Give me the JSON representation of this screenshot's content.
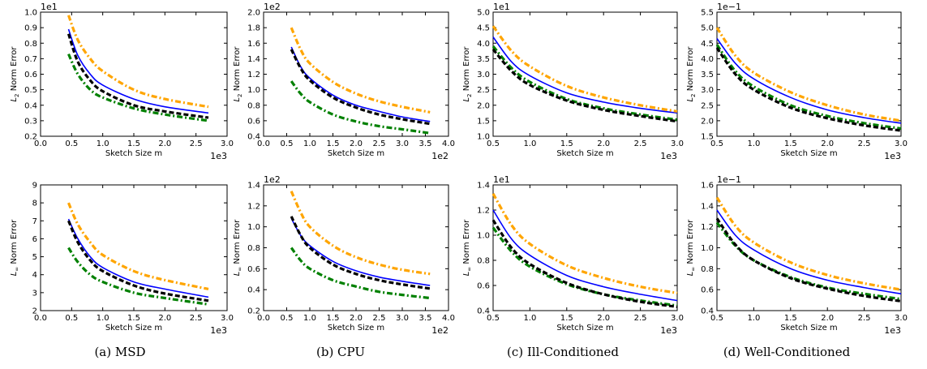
{
  "captions": [
    "(a) MSD",
    "(b) CPU",
    "(c) Ill-Conditioned",
    "(d) Well-Conditioned"
  ],
  "colors": {
    "blue_solid": "#0000ff",
    "black_dashed": "#000000",
    "green_dashdot": "#008000",
    "orange_dashdot": "#ffa500"
  },
  "chart_data": [
    {
      "type": "line",
      "panel": "a-top",
      "xlabel": "Sketch Size m",
      "ylabel_main": "L",
      "ylabel_sub": "2",
      "ylabel_rest": " Norm Error",
      "x_offset_label": "1e3",
      "y_offset_label": "1e1",
      "xlim": [
        0.0,
        3.0
      ],
      "ylim": [
        0.2,
        1.0
      ],
      "xticks": [
        "0.0",
        "0.5",
        "1.0",
        "1.5",
        "2.0",
        "2.5",
        "3.0"
      ],
      "yticks": [
        "0.2",
        "0.3",
        "0.4",
        "0.5",
        "0.6",
        "0.7",
        "0.8",
        "0.9",
        "1.0"
      ],
      "series": [
        {
          "style": "blue_solid",
          "x": [
            0.45,
            0.6,
            0.8,
            1.0,
            1.5,
            2.0,
            2.7
          ],
          "y": [
            0.89,
            0.72,
            0.6,
            0.53,
            0.44,
            0.39,
            0.35
          ]
        },
        {
          "style": "black_dashed",
          "x": [
            0.45,
            0.6,
            0.8,
            1.0,
            1.5,
            2.0,
            2.7
          ],
          "y": [
            0.86,
            0.68,
            0.56,
            0.49,
            0.4,
            0.36,
            0.32
          ]
        },
        {
          "style": "green_dashdot",
          "x": [
            0.45,
            0.6,
            0.8,
            1.0,
            1.5,
            2.0,
            2.7
          ],
          "y": [
            0.73,
            0.6,
            0.5,
            0.45,
            0.38,
            0.34,
            0.3
          ]
        },
        {
          "style": "orange_dashdot",
          "x": [
            0.45,
            0.6,
            0.8,
            1.0,
            1.5,
            2.0,
            2.7
          ],
          "y": [
            0.98,
            0.82,
            0.7,
            0.62,
            0.5,
            0.44,
            0.39
          ]
        }
      ]
    },
    {
      "type": "line",
      "panel": "b-top",
      "xlabel": "Sketch Size m",
      "ylabel_main": "L",
      "ylabel_sub": "2",
      "ylabel_rest": " Norm Error",
      "x_offset_label": "1e2",
      "y_offset_label": "1e2",
      "xlim": [
        0.0,
        4.0
      ],
      "ylim": [
        0.4,
        2.0
      ],
      "xticks": [
        "0.0",
        "0.5",
        "1.0",
        "1.5",
        "2.0",
        "2.5",
        "3.0",
        "3.5",
        "4.0"
      ],
      "yticks": [
        "0.4",
        "0.6",
        "0.8",
        "1.0",
        "1.2",
        "1.4",
        "1.6",
        "1.8",
        "2.0"
      ],
      "series": [
        {
          "style": "blue_solid",
          "x": [
            0.6,
            0.8,
            1.0,
            1.5,
            2.0,
            2.5,
            3.0,
            3.6
          ],
          "y": [
            1.55,
            1.3,
            1.15,
            0.93,
            0.8,
            0.72,
            0.65,
            0.59
          ]
        },
        {
          "style": "black_dashed",
          "x": [
            0.6,
            0.8,
            1.0,
            1.5,
            2.0,
            2.5,
            3.0,
            3.6
          ],
          "y": [
            1.52,
            1.28,
            1.12,
            0.9,
            0.77,
            0.68,
            0.62,
            0.56
          ]
        },
        {
          "style": "green_dashdot",
          "x": [
            0.6,
            0.8,
            1.0,
            1.5,
            2.0,
            2.5,
            3.0,
            3.6
          ],
          "y": [
            1.11,
            0.95,
            0.84,
            0.68,
            0.59,
            0.53,
            0.49,
            0.44
          ]
        },
        {
          "style": "orange_dashdot",
          "x": [
            0.6,
            0.8,
            1.0,
            1.5,
            2.0,
            2.5,
            3.0,
            3.6
          ],
          "y": [
            1.8,
            1.52,
            1.34,
            1.1,
            0.95,
            0.85,
            0.78,
            0.71
          ]
        }
      ]
    },
    {
      "type": "line",
      "panel": "c-top",
      "xlabel": "Sketch Size m",
      "ylabel_main": "L",
      "ylabel_sub": "2",
      "ylabel_rest": " Norm Error",
      "x_offset_label": "1e3",
      "y_offset_label": "1e1",
      "xlim": [
        0.5,
        3.0
      ],
      "ylim": [
        1.0,
        5.0
      ],
      "xticks": [
        "0.5",
        "1.0",
        "1.5",
        "2.0",
        "2.5",
        "3.0"
      ],
      "yticks": [
        "1.0",
        "1.5",
        "2.0",
        "2.5",
        "3.0",
        "3.5",
        "4.0",
        "4.5",
        "5.0"
      ],
      "series": [
        {
          "style": "blue_solid",
          "x": [
            0.5,
            0.75,
            1.0,
            1.5,
            2.0,
            2.5,
            3.0
          ],
          "y": [
            4.2,
            3.4,
            2.95,
            2.4,
            2.1,
            1.9,
            1.75
          ]
        },
        {
          "style": "black_dashed",
          "x": [
            0.5,
            0.75,
            1.0,
            1.5,
            2.0,
            2.5,
            3.0
          ],
          "y": [
            3.8,
            3.1,
            2.65,
            2.15,
            1.85,
            1.65,
            1.48
          ]
        },
        {
          "style": "green_dashdot",
          "x": [
            0.5,
            0.75,
            1.0,
            1.5,
            2.0,
            2.5,
            3.0
          ],
          "y": [
            3.9,
            3.2,
            2.75,
            2.2,
            1.9,
            1.7,
            1.53
          ]
        },
        {
          "style": "orange_dashdot",
          "x": [
            0.5,
            0.75,
            1.0,
            1.5,
            2.0,
            2.5,
            3.0
          ],
          "y": [
            4.55,
            3.75,
            3.25,
            2.62,
            2.25,
            2.0,
            1.8
          ]
        }
      ]
    },
    {
      "type": "line",
      "panel": "d-top",
      "xlabel": "Sketch Size m",
      "ylabel_main": "L",
      "ylabel_sub": "2",
      "ylabel_rest": " Norm Error",
      "x_offset_label": "1e3",
      "y_offset_label": "1e−1",
      "xlim": [
        0.5,
        3.0
      ],
      "ylim": [
        1.5,
        5.5
      ],
      "xticks": [
        "0.5",
        "1.0",
        "1.5",
        "2.0",
        "2.5",
        "3.0"
      ],
      "yticks": [
        "1.5",
        "2.0",
        "2.5",
        "3.0",
        "3.5",
        "4.0",
        "4.5",
        "5.0",
        "5.5"
      ],
      "series": [
        {
          "style": "blue_solid",
          "x": [
            0.5,
            0.75,
            1.0,
            1.5,
            2.0,
            2.5,
            3.0
          ],
          "y": [
            4.65,
            3.85,
            3.35,
            2.75,
            2.35,
            2.1,
            1.92
          ]
        },
        {
          "style": "black_dashed",
          "x": [
            0.5,
            0.75,
            1.0,
            1.5,
            2.0,
            2.5,
            3.0
          ],
          "y": [
            4.35,
            3.5,
            3.0,
            2.42,
            2.08,
            1.85,
            1.68
          ]
        },
        {
          "style": "green_dashdot",
          "x": [
            0.5,
            0.75,
            1.0,
            1.5,
            2.0,
            2.5,
            3.0
          ],
          "y": [
            4.45,
            3.6,
            3.1,
            2.5,
            2.15,
            1.92,
            1.75
          ]
        },
        {
          "style": "orange_dashdot",
          "x": [
            0.5,
            0.75,
            1.0,
            1.5,
            2.0,
            2.5,
            3.0
          ],
          "y": [
            5.0,
            4.1,
            3.55,
            2.92,
            2.5,
            2.2,
            2.0
          ]
        }
      ]
    },
    {
      "type": "line",
      "panel": "a-bottom",
      "xlabel": "Sketch Size m",
      "ylabel_main": "L",
      "ylabel_sub": "∞",
      "ylabel_rest": " Norm Error",
      "x_offset_label": "1e3",
      "y_offset_label": "",
      "xlim": [
        0.0,
        3.0
      ],
      "ylim": [
        2,
        9
      ],
      "xticks": [
        "0.0",
        "0.5",
        "1.0",
        "1.5",
        "2.0",
        "2.5",
        "3.0"
      ],
      "yticks": [
        "2",
        "3",
        "4",
        "5",
        "6",
        "7",
        "8",
        "9"
      ],
      "series": [
        {
          "style": "blue_solid",
          "x": [
            0.45,
            0.6,
            0.8,
            1.0,
            1.5,
            2.0,
            2.7
          ],
          "y": [
            7.1,
            6.0,
            5.0,
            4.4,
            3.6,
            3.2,
            2.75
          ]
        },
        {
          "style": "black_dashed",
          "x": [
            0.45,
            0.6,
            0.8,
            1.0,
            1.5,
            2.0,
            2.7
          ],
          "y": [
            7.0,
            5.8,
            4.8,
            4.2,
            3.4,
            2.95,
            2.55
          ]
        },
        {
          "style": "green_dashdot",
          "x": [
            0.45,
            0.6,
            0.8,
            1.0,
            1.5,
            2.0,
            2.7
          ],
          "y": [
            5.5,
            4.7,
            4.0,
            3.6,
            3.0,
            2.7,
            2.35
          ]
        },
        {
          "style": "orange_dashdot",
          "x": [
            0.45,
            0.6,
            0.8,
            1.0,
            1.5,
            2.0,
            2.7
          ],
          "y": [
            8.0,
            6.8,
            5.8,
            5.1,
            4.2,
            3.7,
            3.2
          ]
        }
      ]
    },
    {
      "type": "line",
      "panel": "b-bottom",
      "xlabel": "Sketch Size m",
      "ylabel_main": "L",
      "ylabel_sub": "∞",
      "ylabel_rest": " Norm Error",
      "x_offset_label": "1e2",
      "y_offset_label": "1e2",
      "xlim": [
        0.0,
        4.0
      ],
      "ylim": [
        0.2,
        1.4
      ],
      "xticks": [
        "0.0",
        "0.5",
        "1.0",
        "1.5",
        "2.0",
        "2.5",
        "3.0",
        "3.5",
        "4.0"
      ],
      "yticks": [
        "0.2",
        "0.4",
        "0.6",
        "0.8",
        "1.0",
        "1.2",
        "1.4"
      ],
      "series": [
        {
          "style": "blue_solid",
          "x": [
            0.6,
            0.8,
            1.0,
            1.5,
            2.0,
            2.5,
            3.0,
            3.6
          ],
          "y": [
            1.08,
            0.92,
            0.82,
            0.67,
            0.58,
            0.52,
            0.48,
            0.44
          ]
        },
        {
          "style": "black_dashed",
          "x": [
            0.6,
            0.8,
            1.0,
            1.5,
            2.0,
            2.5,
            3.0,
            3.6
          ],
          "y": [
            1.1,
            0.92,
            0.8,
            0.64,
            0.55,
            0.49,
            0.45,
            0.41
          ]
        },
        {
          "style": "green_dashdot",
          "x": [
            0.6,
            0.8,
            1.0,
            1.5,
            2.0,
            2.5,
            3.0,
            3.6
          ],
          "y": [
            0.8,
            0.68,
            0.6,
            0.49,
            0.43,
            0.38,
            0.35,
            0.32
          ]
        },
        {
          "style": "orange_dashdot",
          "x": [
            0.6,
            0.8,
            1.0,
            1.5,
            2.0,
            2.5,
            3.0,
            3.6
          ],
          "y": [
            1.34,
            1.14,
            1.0,
            0.82,
            0.71,
            0.64,
            0.59,
            0.55
          ]
        }
      ]
    },
    {
      "type": "line",
      "panel": "c-bottom",
      "xlabel": "Sketch Size m",
      "ylabel_main": "L",
      "ylabel_sub": "∞",
      "ylabel_rest": " Norm Error",
      "x_offset_label": "1e3",
      "y_offset_label": "1e1",
      "xlim": [
        0.5,
        3.0
      ],
      "ylim": [
        0.4,
        1.4
      ],
      "xticks": [
        "0.5",
        "1.0",
        "1.5",
        "2.0",
        "2.5",
        "3.0"
      ],
      "yticks": [
        "0.4",
        "0.6",
        "0.8",
        "1.0",
        "1.2",
        "1.4"
      ],
      "series": [
        {
          "style": "blue_solid",
          "x": [
            0.5,
            0.75,
            1.0,
            1.5,
            2.0,
            2.5,
            3.0
          ],
          "y": [
            1.2,
            0.97,
            0.84,
            0.68,
            0.59,
            0.53,
            0.48
          ]
        },
        {
          "style": "black_dashed",
          "x": [
            0.5,
            0.75,
            1.0,
            1.5,
            2.0,
            2.5,
            3.0
          ],
          "y": [
            1.12,
            0.9,
            0.77,
            0.62,
            0.53,
            0.47,
            0.43
          ]
        },
        {
          "style": "green_dashdot",
          "x": [
            0.5,
            0.75,
            1.0,
            1.5,
            2.0,
            2.5,
            3.0
          ],
          "y": [
            1.06,
            0.87,
            0.75,
            0.61,
            0.53,
            0.48,
            0.44
          ]
        },
        {
          "style": "orange_dashdot",
          "x": [
            0.5,
            0.75,
            1.0,
            1.5,
            2.0,
            2.5,
            3.0
          ],
          "y": [
            1.33,
            1.08,
            0.93,
            0.76,
            0.66,
            0.59,
            0.54
          ]
        }
      ]
    },
    {
      "type": "line",
      "panel": "d-bottom",
      "xlabel": "Sketch Size m",
      "ylabel_main": "L",
      "ylabel_sub": "∞",
      "ylabel_rest": " Norm Error",
      "x_offset_label": "1e3",
      "y_offset_label": "1e−1",
      "xlim": [
        0.5,
        3.0
      ],
      "ylim": [
        0.4,
        1.6
      ],
      "xticks": [
        "0.5",
        "1.0",
        "1.5",
        "2.0",
        "2.5",
        "3.0"
      ],
      "yticks": [
        "0.4",
        "0.6",
        "0.8",
        "1.0",
        "1.2",
        "1.4",
        "1.6"
      ],
      "series": [
        {
          "style": "blue_solid",
          "x": [
            0.5,
            0.75,
            1.0,
            1.5,
            2.0,
            2.5,
            3.0
          ],
          "y": [
            1.36,
            1.12,
            0.98,
            0.8,
            0.69,
            0.62,
            0.56
          ]
        },
        {
          "style": "black_dashed",
          "x": [
            0.5,
            0.75,
            1.0,
            1.5,
            2.0,
            2.5,
            3.0
          ],
          "y": [
            1.28,
            1.03,
            0.88,
            0.71,
            0.61,
            0.54,
            0.49
          ]
        },
        {
          "style": "green_dashdot",
          "x": [
            0.5,
            0.75,
            1.0,
            1.5,
            2.0,
            2.5,
            3.0
          ],
          "y": [
            1.24,
            1.02,
            0.88,
            0.72,
            0.62,
            0.56,
            0.51
          ]
        },
        {
          "style": "orange_dashdot",
          "x": [
            0.5,
            0.75,
            1.0,
            1.5,
            2.0,
            2.5,
            3.0
          ],
          "y": [
            1.48,
            1.21,
            1.05,
            0.86,
            0.74,
            0.66,
            0.6
          ]
        }
      ]
    }
  ]
}
